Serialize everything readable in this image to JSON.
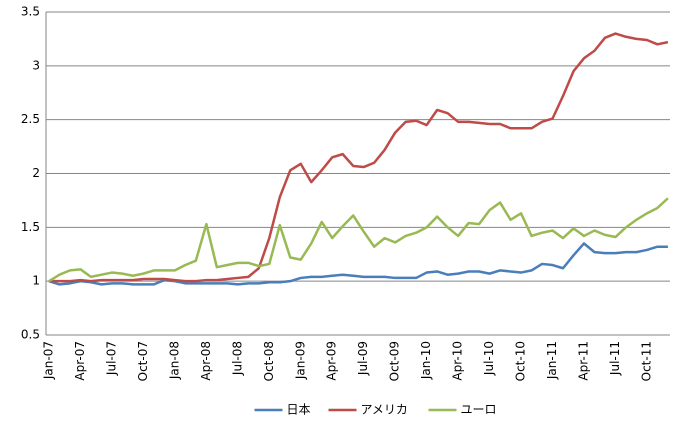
{
  "chart_data": {
    "type": "line",
    "categories": [
      "Jan-07",
      null,
      null,
      "Apr-07",
      null,
      null,
      "Jul-07",
      null,
      null,
      "Oct-07",
      null,
      null,
      "Jan-08",
      null,
      null,
      "Apr-08",
      null,
      null,
      "Jul-08",
      null,
      null,
      "Oct-08",
      null,
      null,
      "Jan-09",
      null,
      null,
      "Apr-09",
      null,
      null,
      "Jul-09",
      null,
      null,
      "Oct-09",
      null,
      null,
      "Jan-10",
      null,
      null,
      "Apr-10",
      null,
      null,
      "Jul-10",
      null,
      null,
      "Oct-10",
      null,
      null,
      "Jan-11",
      null,
      null,
      "Apr-11",
      null,
      null,
      "Jul-11",
      null,
      null,
      "Oct-11",
      null,
      null
    ],
    "series": [
      {
        "name": "日本",
        "color": "#4a7ebb",
        "values": [
          1,
          0.97,
          0.98,
          1.0,
          0.99,
          0.97,
          0.98,
          0.98,
          0.97,
          0.97,
          0.97,
          1.01,
          1.0,
          0.98,
          0.98,
          0.98,
          0.98,
          0.98,
          0.97,
          0.98,
          0.98,
          0.99,
          0.99,
          1.0,
          1.03,
          1.04,
          1.04,
          1.05,
          1.06,
          1.05,
          1.04,
          1.04,
          1.04,
          1.03,
          1.03,
          1.03,
          1.08,
          1.09,
          1.06,
          1.07,
          1.09,
          1.09,
          1.07,
          1.1,
          1.09,
          1.08,
          1.1,
          1.16,
          1.15,
          1.12,
          1.24,
          1.35,
          1.27,
          1.26,
          1.26,
          1.27,
          1.27,
          1.29,
          1.32,
          1.32
        ]
      },
      {
        "name": "アメリカ",
        "color": "#be4b48",
        "values": [
          1.0,
          1.0,
          1.0,
          1.01,
          1.0,
          1.01,
          1.01,
          1.01,
          1.01,
          1.02,
          1.02,
          1.02,
          1.01,
          1.0,
          1.0,
          1.01,
          1.01,
          1.02,
          1.03,
          1.04,
          1.12,
          1.4,
          1.78,
          2.03,
          2.09,
          1.92,
          2.03,
          2.15,
          2.18,
          2.07,
          2.06,
          2.1,
          2.22,
          2.38,
          2.48,
          2.49,
          2.45,
          2.59,
          2.56,
          2.48,
          2.48,
          2.47,
          2.46,
          2.46,
          2.42,
          2.42,
          2.42,
          2.48,
          2.51,
          2.72,
          2.95,
          3.07,
          3.14,
          3.26,
          3.3,
          3.27,
          3.25,
          3.24,
          3.2,
          3.22
        ]
      },
      {
        "name": "ユーロ",
        "color": "#98b954",
        "values": [
          1.0,
          1.06,
          1.1,
          1.11,
          1.04,
          1.06,
          1.08,
          1.07,
          1.05,
          1.07,
          1.1,
          1.1,
          1.1,
          1.15,
          1.19,
          1.53,
          1.13,
          1.15,
          1.17,
          1.17,
          1.14,
          1.16,
          1.52,
          1.22,
          1.2,
          1.35,
          1.55,
          1.4,
          1.51,
          1.61,
          1.46,
          1.32,
          1.4,
          1.36,
          1.42,
          1.45,
          1.5,
          1.6,
          1.5,
          1.42,
          1.54,
          1.53,
          1.66,
          1.73,
          1.57,
          1.63,
          1.42,
          1.45,
          1.47,
          1.4,
          1.49,
          1.42,
          1.47,
          1.43,
          1.41,
          1.5,
          1.57,
          1.63,
          1.68,
          1.77
        ]
      }
    ],
    "ylim": [
      0.5,
      3.5
    ],
    "yticks": [
      0.5,
      1,
      1.5,
      2,
      2.5,
      3,
      3.5
    ],
    "grid": true,
    "legend": "bottom"
  }
}
